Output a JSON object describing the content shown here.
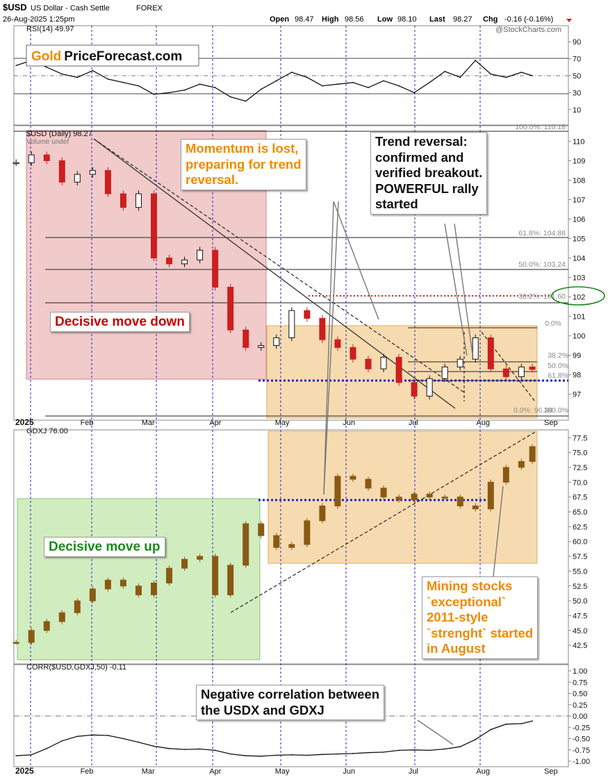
{
  "header": {
    "symbol": "$USD",
    "name": "US Dollar - Cash Settle",
    "exchange": "FOREX",
    "datetime": "26-Aug-2025 1:25pm",
    "open_label": "Open",
    "open": "98.47",
    "high_label": "High",
    "high": "98.56",
    "low_label": "Low",
    "low": "98.10",
    "last_label": "Last",
    "last": "98.27",
    "chg_label": "Chg",
    "chg": "-0.16 (-0.16%)",
    "source": "@StockCharts.com",
    "logo_gold": "Gold",
    "logo_rest": "PriceForecast.com"
  },
  "colors": {
    "up_candle": "#111111",
    "down_candle": "#cc1f1f",
    "gdxj_candle": "#8a5a14",
    "red_zone": "#e8a6a6",
    "orange_zone": "#f4cc8f",
    "green_zone": "#bde6a4",
    "blue_dotted": "#1f1fd0",
    "fib_red": "#cc2222",
    "ellipse": "#1a8a1a",
    "annotation_red": "#c80000",
    "annotation_orange": "#f08a00",
    "annotation_green": "#1b8a1b"
  },
  "x_axis": {
    "year_label": "2025",
    "months": [
      "Feb",
      "Mar",
      "Apr",
      "May",
      "Jun",
      "Jul",
      "Aug",
      "Sep"
    ]
  },
  "annotations": {
    "decisive_down": "Decisive move down",
    "decisive_up": "Decisive move up",
    "momentum": [
      "Momentum is lost,",
      "preparing for trend",
      "reversal."
    ],
    "trend_reversal": [
      "Trend reversal:",
      "confirmed and",
      "verified breakout.",
      "POWERFUL rally",
      "started"
    ],
    "mining": [
      "Mining stocks",
      "`exceptional`",
      "2011-style",
      "`strenght` started",
      "in August"
    ],
    "correlation": [
      "Negative correlation between",
      "the USDX and GDXJ"
    ]
  },
  "chart_data": [
    {
      "type": "line",
      "title": "RSI(14) 49.97",
      "ylim": [
        0,
        100
      ],
      "yticks": [
        10,
        30,
        50,
        70,
        90
      ],
      "reference_lines": [
        30,
        50,
        70
      ],
      "x": [
        "2025-01-02",
        "2025-01-09",
        "2025-01-16",
        "2025-01-23",
        "2025-01-30",
        "2025-02-06",
        "2025-02-13",
        "2025-02-20",
        "2025-02-27",
        "2025-03-06",
        "2025-03-13",
        "2025-03-20",
        "2025-03-27",
        "2025-04-03",
        "2025-04-10",
        "2025-04-17",
        "2025-04-24",
        "2025-05-01",
        "2025-05-08",
        "2025-05-15",
        "2025-05-22",
        "2025-05-29",
        "2025-06-05",
        "2025-06-12",
        "2025-06-19",
        "2025-06-26",
        "2025-07-03",
        "2025-07-10",
        "2025-07-17",
        "2025-07-24",
        "2025-07-31",
        "2025-08-07",
        "2025-08-14",
        "2025-08-21",
        "2025-08-26"
      ],
      "values": [
        62,
        68,
        60,
        52,
        48,
        56,
        46,
        42,
        38,
        28,
        30,
        33,
        40,
        36,
        25,
        20,
        34,
        44,
        54,
        48,
        38,
        40,
        42,
        36,
        44,
        38,
        30,
        42,
        55,
        48,
        68,
        52,
        48,
        54,
        50
      ]
    },
    {
      "type": "candlestick",
      "title": "$USD (Daily) 98.27",
      "subtitle": "Volume undef",
      "ylim": [
        96.2,
        110.3
      ],
      "yticks": [
        97,
        98,
        99,
        100,
        101,
        102,
        103,
        104,
        105,
        106,
        107,
        108,
        109,
        110
      ],
      "x": [
        "2025-01-02",
        "2025-01-09",
        "2025-01-16",
        "2025-01-23",
        "2025-01-30",
        "2025-02-06",
        "2025-02-13",
        "2025-02-20",
        "2025-02-27",
        "2025-03-06",
        "2025-03-13",
        "2025-03-20",
        "2025-03-27",
        "2025-04-03",
        "2025-04-10",
        "2025-04-17",
        "2025-04-24",
        "2025-05-01",
        "2025-05-08",
        "2025-05-15",
        "2025-05-22",
        "2025-05-29",
        "2025-06-05",
        "2025-06-12",
        "2025-06-19",
        "2025-06-26",
        "2025-07-03",
        "2025-07-10",
        "2025-07-17",
        "2025-07-24",
        "2025-07-31",
        "2025-08-07",
        "2025-08-14",
        "2025-08-21",
        "2025-08-26"
      ],
      "values": [
        108.9,
        109.3,
        109.0,
        107.9,
        108.3,
        108.5,
        107.3,
        106.6,
        107.3,
        104.0,
        103.7,
        103.9,
        104.4,
        102.5,
        100.3,
        99.4,
        99.5,
        99.9,
        101.3,
        100.9,
        99.8,
        99.4,
        98.8,
        98.3,
        98.9,
        97.6,
        96.9,
        97.8,
        98.4,
        98.8,
        99.9,
        98.3,
        97.9,
        98.4,
        98.27
      ],
      "fibonacci_labels": [
        "100.0%: 110.18",
        "61.8%: 104.88",
        "50.0%: 103.24",
        "38.2%: 101.60",
        "0.0%",
        "38.2%",
        "50.0%",
        "61.8%",
        "0.0%: 96.38",
        "100.0%"
      ],
      "highlight_level": "102"
    },
    {
      "type": "candlestick",
      "title": "GDXJ 76.00",
      "ylim": [
        41,
        78
      ],
      "yticks": [
        42.5,
        45.0,
        47.5,
        50.0,
        52.5,
        55.0,
        57.5,
        60.0,
        62.5,
        65.0,
        67.5,
        70.0,
        72.5,
        75.0,
        77.5
      ],
      "x": [
        "2025-01-02",
        "2025-01-09",
        "2025-01-16",
        "2025-01-23",
        "2025-01-30",
        "2025-02-06",
        "2025-02-13",
        "2025-02-20",
        "2025-02-27",
        "2025-03-06",
        "2025-03-13",
        "2025-03-20",
        "2025-03-27",
        "2025-04-03",
        "2025-04-10",
        "2025-04-17",
        "2025-04-24",
        "2025-05-01",
        "2025-05-08",
        "2025-05-15",
        "2025-05-22",
        "2025-05-29",
        "2025-06-05",
        "2025-06-12",
        "2025-06-19",
        "2025-06-26",
        "2025-07-03",
        "2025-07-10",
        "2025-07-17",
        "2025-07-24",
        "2025-07-31",
        "2025-08-07",
        "2025-08-14",
        "2025-08-21",
        "2025-08-26"
      ],
      "values": [
        43.0,
        45.0,
        46.5,
        48.0,
        50.0,
        52.0,
        53.5,
        52.5,
        51.0,
        53.0,
        55.5,
        57.0,
        57.5,
        51.0,
        56.0,
        63.0,
        61.0,
        59.0,
        59.5,
        63.5,
        66.0,
        71.0,
        70.5,
        69.0,
        67.5,
        67.0,
        68.0,
        67.5,
        67.5,
        66.0,
        65.5,
        70.0,
        72.5,
        73.5,
        76.0
      ]
    },
    {
      "type": "line",
      "title": "CORR($USD,GDXJ,50) -0.11",
      "ylim": [
        -1.0,
        1.0
      ],
      "yticks": [
        1.0,
        0.75,
        0.5,
        0.25,
        0.0,
        -0.25,
        -0.5,
        -0.75,
        -1.0
      ],
      "yticklabels": [
        "1.00",
        "0.75",
        "0.50",
        "0.25",
        "0.00",
        "-0.25",
        "-0.50",
        "-0.75",
        "-1.00"
      ],
      "x": [
        "2025-01-02",
        "2025-01-09",
        "2025-01-16",
        "2025-01-23",
        "2025-01-30",
        "2025-02-06",
        "2025-02-13",
        "2025-02-20",
        "2025-02-27",
        "2025-03-06",
        "2025-03-13",
        "2025-03-20",
        "2025-03-27",
        "2025-04-03",
        "2025-04-10",
        "2025-04-17",
        "2025-04-24",
        "2025-05-01",
        "2025-05-08",
        "2025-05-15",
        "2025-05-22",
        "2025-05-29",
        "2025-06-05",
        "2025-06-12",
        "2025-06-19",
        "2025-06-26",
        "2025-07-03",
        "2025-07-10",
        "2025-07-17",
        "2025-07-24",
        "2025-07-31",
        "2025-08-07",
        "2025-08-14",
        "2025-08-21",
        "2025-08-26"
      ],
      "values": [
        -0.88,
        -0.86,
        -0.72,
        -0.55,
        -0.45,
        -0.42,
        -0.43,
        -0.5,
        -0.58,
        -0.67,
        -0.72,
        -0.74,
        -0.73,
        -0.76,
        -0.84,
        -0.88,
        -0.89,
        -0.87,
        -0.86,
        -0.87,
        -0.85,
        -0.84,
        -0.83,
        -0.81,
        -0.8,
        -0.76,
        -0.75,
        -0.76,
        -0.73,
        -0.68,
        -0.52,
        -0.3,
        -0.18,
        -0.17,
        -0.11
      ]
    }
  ]
}
